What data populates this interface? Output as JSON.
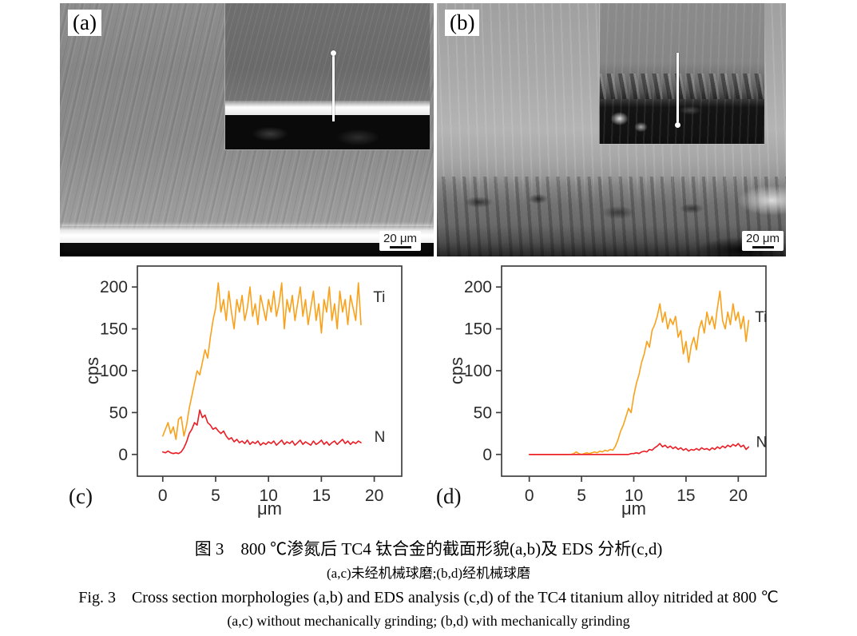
{
  "panels": {
    "a": {
      "label": "(a)",
      "scale_bar": "20 μm"
    },
    "b": {
      "label": "(b)",
      "scale_bar": "20 μm"
    },
    "c": {
      "label": "(c)"
    },
    "d": {
      "label": "(d)"
    }
  },
  "captions": {
    "zh_line1": "图 3 800 ℃渗氮后 TC4 钛合金的截面形貌(a,b)及 EDS 分析(c,d)",
    "zh_line2": "(a,c)未经机械球磨;(b,d)经机械球磨",
    "en_line1": "Fig. 3 Cross section morphologies (a,b) and EDS analysis (c,d) of the TC4 titanium alloy nitrided at 800 ℃",
    "en_line2": "(a,c) without mechanically grinding; (b,d) with mechanically grinding"
  },
  "colors": {
    "ti_orange": "#F9A11B",
    "n_red": "#EC1C24",
    "axis": "#3f3f3f",
    "text": "#2b2b2b"
  },
  "chart_data": [
    {
      "type": "line",
      "panel": "(c)",
      "title": "",
      "xlabel": "μm",
      "ylabel": "cps",
      "x_ticks": [
        0,
        5,
        10,
        15,
        20
      ],
      "y_ticks": [
        0,
        50,
        100,
        150,
        200
      ],
      "xlim": [
        -2.4,
        22.6
      ],
      "ylim": [
        -26,
        225
      ],
      "x_start": 0,
      "x_step": 0.25,
      "series": [
        {
          "name": "Ti",
          "color": "#F9A11B",
          "label_x": 19.9,
          "label_y": 182,
          "values": [
            22,
            30,
            38,
            25,
            33,
            18,
            42,
            45,
            22,
            35,
            55,
            70,
            85,
            100,
            95,
            110,
            125,
            115,
            140,
            160,
            175,
            205,
            170,
            185,
            160,
            195,
            170,
            150,
            185,
            170,
            190,
            160,
            175,
            200,
            165,
            180,
            155,
            190,
            175,
            160,
            185,
            170,
            195,
            165,
            180,
            205,
            150,
            185,
            170,
            190,
            160,
            180,
            200,
            165,
            185,
            155,
            175,
            195,
            160,
            180,
            145,
            185,
            170,
            200,
            160,
            180,
            150,
            195,
            170,
            185,
            155,
            190,
            175,
            160,
            205,
            155
          ]
        },
        {
          "name": "N",
          "color": "#EC1C24",
          "label_x": 20.0,
          "label_y": 15,
          "values": [
            3,
            2,
            4,
            2,
            1,
            2,
            1,
            3,
            8,
            15,
            25,
            30,
            38,
            35,
            53,
            44,
            47,
            38,
            35,
            30,
            32,
            28,
            25,
            28,
            22,
            18,
            20,
            15,
            18,
            14,
            16,
            13,
            17,
            12,
            15,
            13,
            16,
            11,
            14,
            12,
            15,
            13,
            16,
            11,
            14,
            17,
            12,
            15,
            13,
            16,
            11,
            14,
            17,
            12,
            15,
            13,
            11,
            16,
            12,
            14,
            17,
            12,
            15,
            11,
            14,
            16,
            12,
            15,
            18,
            13,
            16,
            12,
            15,
            13,
            16,
            14
          ]
        }
      ]
    },
    {
      "type": "line",
      "panel": "(d)",
      "title": "",
      "xlabel": "μm",
      "ylabel": "cps",
      "x_ticks": [
        0,
        5,
        10,
        15,
        20
      ],
      "y_ticks": [
        0,
        50,
        100,
        150,
        200
      ],
      "xlim": [
        -2.65,
        22.65
      ],
      "ylim": [
        -26,
        225
      ],
      "x_start": 0,
      "x_step": 0.25,
      "series": [
        {
          "name": "Ti",
          "color": "#F9A11B",
          "label_x": 21.6,
          "label_y": 158,
          "values": [
            0,
            0,
            0,
            0,
            0,
            0,
            0,
            0,
            0,
            0,
            0,
            0,
            0,
            0,
            0,
            0,
            0,
            1,
            3,
            1,
            0,
            1,
            2,
            1,
            2,
            3,
            2,
            4,
            3,
            5,
            4,
            6,
            5,
            10,
            18,
            28,
            35,
            45,
            55,
            50,
            70,
            85,
            95,
            110,
            120,
            135,
            128,
            148,
            155,
            165,
            180,
            158,
            170,
            150,
            162,
            155,
            165,
            140,
            148,
            120,
            135,
            110,
            130,
            140,
            125,
            150,
            160,
            145,
            170,
            155,
            165,
            150,
            175,
            195,
            160,
            150,
            170,
            155,
            180,
            160,
            170,
            150,
            165,
            135,
            160
          ]
        },
        {
          "name": "N",
          "color": "#EC1C24",
          "label_x": 21.7,
          "label_y": 9,
          "values": [
            0,
            0,
            0,
            0,
            0,
            0,
            0,
            0,
            0,
            0,
            0,
            0,
            0,
            0,
            0,
            0,
            0,
            0,
            0,
            0,
            0,
            0,
            0,
            0,
            0,
            0,
            0,
            0,
            0,
            0,
            0,
            0,
            0,
            0,
            0,
            0,
            0,
            0,
            0,
            1,
            1,
            2,
            1,
            3,
            4,
            3,
            6,
            5,
            8,
            10,
            13,
            9,
            11,
            8,
            10,
            7,
            9,
            6,
            8,
            5,
            7,
            4,
            6,
            5,
            7,
            5,
            8,
            6,
            7,
            5,
            8,
            6,
            9,
            7,
            10,
            8,
            11,
            9,
            12,
            10,
            13,
            9,
            11,
            6,
            9
          ]
        }
      ]
    }
  ]
}
